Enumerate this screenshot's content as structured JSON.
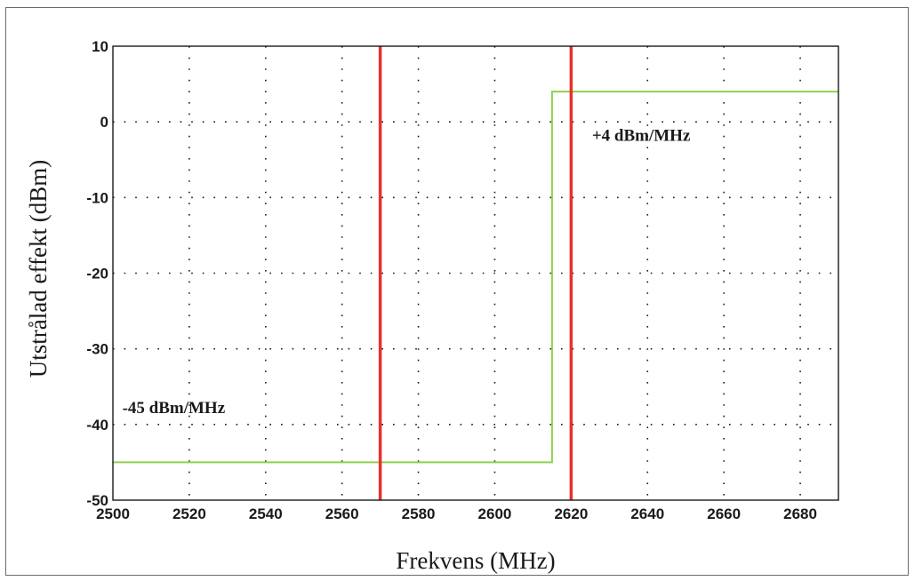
{
  "chart_data": {
    "type": "line",
    "title": "",
    "xlabel": "Frekvens (MHz)",
    "ylabel": "Utstrålad effekt (dBm)",
    "xlim": [
      2500,
      2690
    ],
    "ylim": [
      -50,
      10
    ],
    "x_ticks": [
      2500,
      2520,
      2540,
      2560,
      2580,
      2600,
      2620,
      2640,
      2660,
      2680
    ],
    "x_tick_labels": [
      "2500",
      "2520",
      "2540",
      "2560",
      "2580",
      "2600",
      "2620",
      "2640",
      "2660",
      "2680"
    ],
    "y_ticks": [
      10,
      0,
      -10,
      -20,
      -30,
      -40,
      -50
    ],
    "y_tick_labels": [
      "10",
      "0",
      "-10",
      "-20",
      "-30",
      "-40",
      "-50"
    ],
    "grid": true,
    "series": [
      {
        "color": "#8fd14f",
        "x": [
          2500,
          2615,
          2615,
          2690
        ],
        "y": [
          -45,
          -45,
          4,
          4
        ]
      }
    ],
    "vertical_lines": [
      {
        "x": 2570,
        "color": "#e8312a"
      },
      {
        "x": 2620,
        "color": "#e8312a"
      }
    ],
    "annotations": [
      {
        "text": "+4 dBm/MHz",
        "x": 2625,
        "y": -2.5
      },
      {
        "text": "-45 dBm/MHz",
        "x": 2502,
        "y": -38.5
      }
    ]
  }
}
